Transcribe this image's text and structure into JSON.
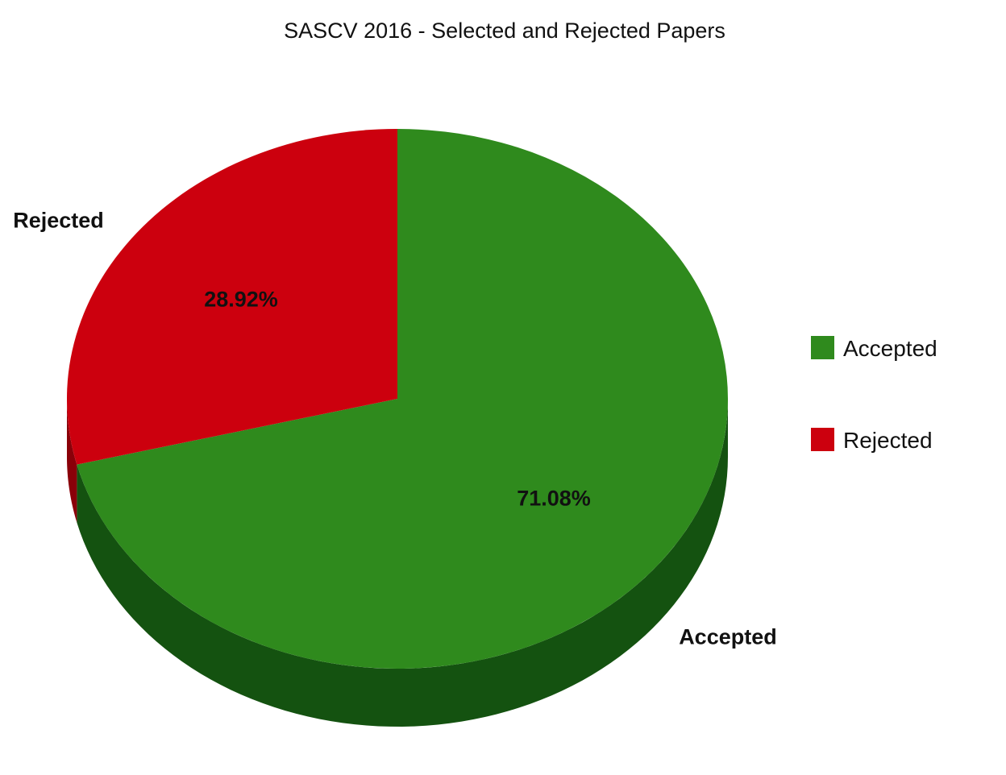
{
  "chart_data": {
    "type": "pie",
    "title": "SASCV 2016 - Selected and Rejected Papers",
    "style": "3d",
    "legend_position": "right",
    "slices": [
      {
        "label": "Accepted",
        "value": 71.08,
        "value_label": "71.08%",
        "color": "#2f8a1d",
        "side_color": "#145210"
      },
      {
        "label": "Rejected",
        "value": 28.92,
        "value_label": "28.92%",
        "color": "#cc000e",
        "side_color": "#8a0009"
      }
    ]
  }
}
